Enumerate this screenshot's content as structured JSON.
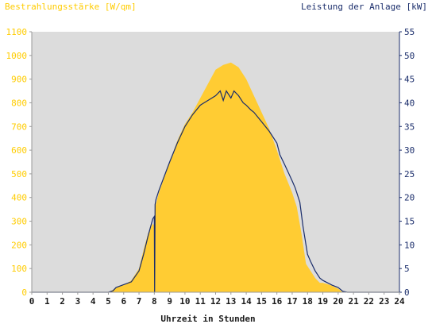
{
  "chart_data": {
    "type": "area",
    "left_axis_label": "Bestrahlungsstärke [W/qm]",
    "right_axis_label": "Leistung der Anlage [kW]",
    "xlabel": "Uhrzeit in Stunden",
    "xlim": [
      0,
      24
    ],
    "ylim_left": [
      0,
      1100
    ],
    "ylim_right": [
      0,
      55
    ],
    "x_ticks": [
      "0",
      "1",
      "2",
      "3",
      "4",
      "5",
      "6",
      "7",
      "8",
      "9",
      "10",
      "11",
      "12",
      "13",
      "14",
      "15",
      "16",
      "17",
      "18",
      "19",
      "20",
      "21",
      "22",
      "23",
      "24"
    ],
    "y_ticks_left": [
      "0",
      "100",
      "200",
      "300",
      "400",
      "500",
      "600",
      "700",
      "800",
      "900",
      "1000",
      "1100"
    ],
    "y_ticks_right": [
      "0",
      "5",
      "10",
      "15",
      "20",
      "25",
      "30",
      "35",
      "40",
      "45",
      "50",
      "55"
    ],
    "grid": false,
    "colors": {
      "irradiance": "#ffcc33",
      "power": "#1a2d6b",
      "plot_bg": "#dcdcdc",
      "left_axis_text": "#ffcc00",
      "right_axis_text": "#1a2d6b"
    },
    "series": [
      {
        "name": "Bestrahlungsstärke [W/qm]",
        "axis": "left",
        "style": "area",
        "x": [
          0,
          5.0,
          5.3,
          5.5,
          6.0,
          6.5,
          7.0,
          7.3,
          7.6,
          7.9,
          8.0,
          8.02,
          8.05,
          8.3,
          9.0,
          9.5,
          10.0,
          10.5,
          11.0,
          11.5,
          12.0,
          12.5,
          13.0,
          13.5,
          14.0,
          14.5,
          15.0,
          15.5,
          16.0,
          16.5,
          17.0,
          17.3,
          17.6,
          17.9,
          18.2,
          18.5,
          18.8,
          19.0,
          19.5,
          20.0,
          20.3,
          20.6,
          21.0,
          24
        ],
        "y": [
          0,
          0,
          10,
          20,
          30,
          50,
          100,
          180,
          250,
          290,
          280,
          0,
          360,
          420,
          550,
          640,
          710,
          760,
          820,
          880,
          940,
          960,
          970,
          950,
          900,
          830,
          760,
          690,
          600,
          500,
          420,
          360,
          250,
          120,
          90,
          60,
          40,
          40,
          30,
          15,
          0,
          0,
          0,
          0
        ]
      },
      {
        "name": "Leistung der Anlage [kW]",
        "axis": "right",
        "style": "line",
        "x": [
          0,
          5.0,
          5.3,
          5.5,
          6.0,
          6.5,
          7.0,
          7.3,
          7.6,
          7.9,
          8.0,
          8.02,
          8.05,
          8.1,
          8.3,
          9.0,
          9.5,
          10.0,
          10.5,
          11.0,
          11.5,
          12.0,
          12.3,
          12.5,
          12.7,
          13.0,
          13.2,
          13.5,
          13.8,
          14.0,
          14.3,
          14.5,
          15.0,
          15.5,
          16.0,
          16.2,
          16.5,
          17.0,
          17.2,
          17.5,
          17.7,
          18.0,
          18.2,
          18.5,
          18.8,
          19.0,
          19.3,
          19.6,
          20.0,
          20.3,
          20.6,
          21.0,
          24
        ],
        "y": [
          0,
          0,
          0.3,
          1.0,
          1.6,
          2.2,
          4.5,
          8.0,
          12.0,
          15.5,
          16.0,
          0,
          18.5,
          19.5,
          21.5,
          27.5,
          31.5,
          35.0,
          37.5,
          39.5,
          40.5,
          41.5,
          42.5,
          40.5,
          42.5,
          41.0,
          42.5,
          41.5,
          40.0,
          39.5,
          38.5,
          38.0,
          36.0,
          34.0,
          31.5,
          29.0,
          27.0,
          23.5,
          22.0,
          19.0,
          14.0,
          8.0,
          6.5,
          4.5,
          3.0,
          2.5,
          2.0,
          1.5,
          1.0,
          0.2,
          0,
          0,
          0
        ]
      }
    ]
  }
}
